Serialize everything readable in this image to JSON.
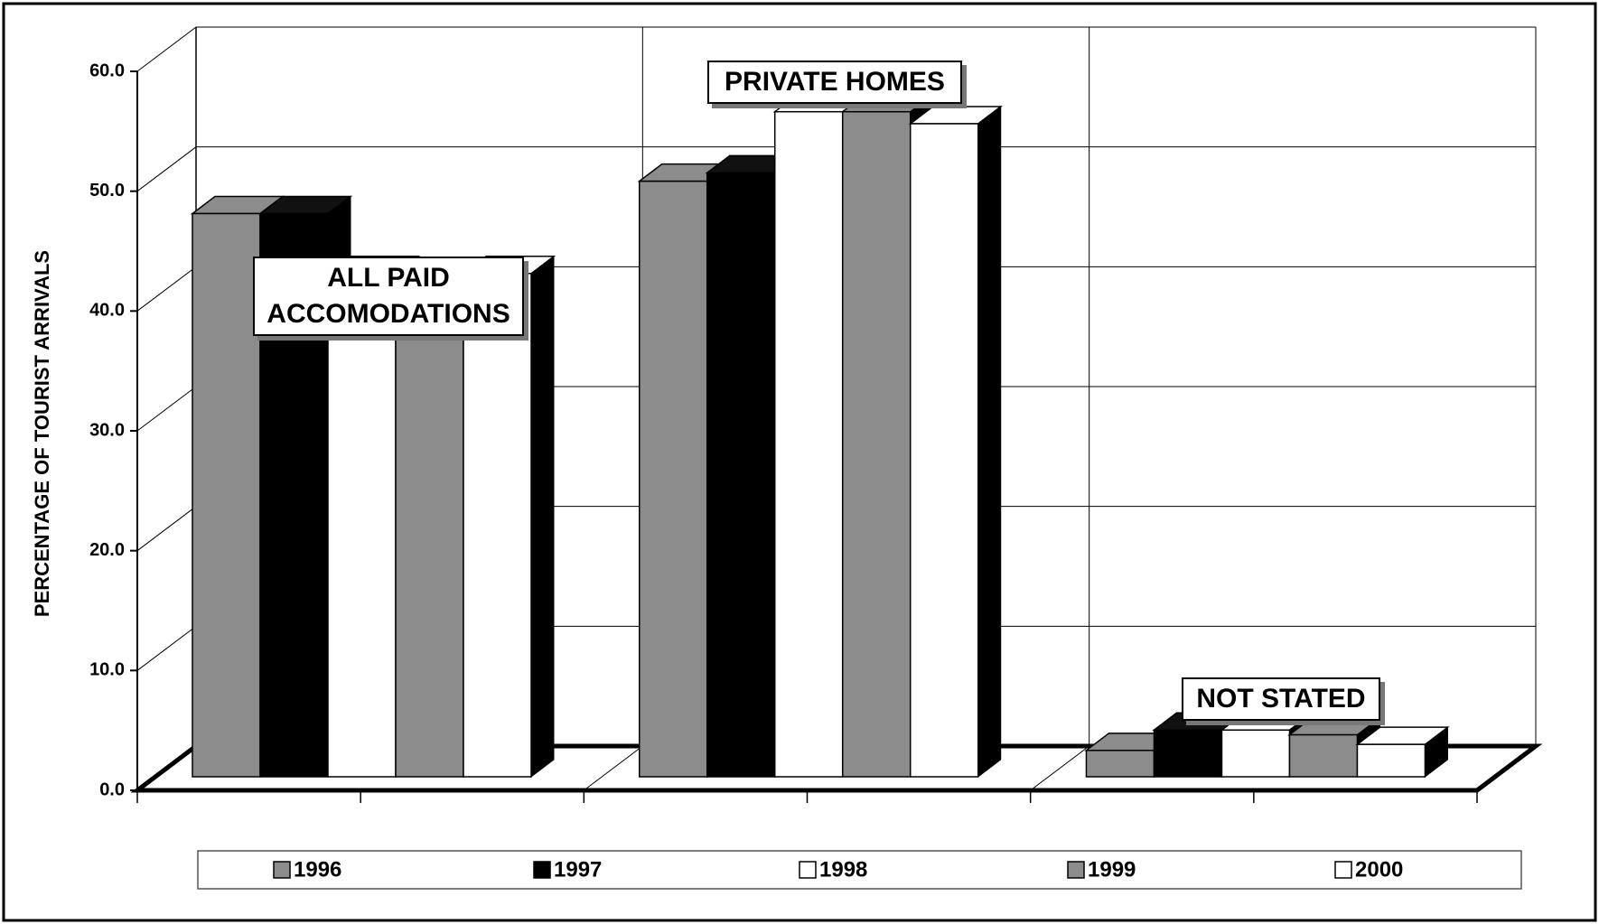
{
  "chart_data": {
    "type": "bar3d",
    "y_label": "PERCENTAGE OF TOURIST ARRIVALS",
    "categories": [
      "ALL PAID ACCOMODATIONS",
      "PRIVATE HOMES",
      "NOT STATED"
    ],
    "series": [
      {
        "name": "1996",
        "color": "#8c8c8c",
        "values": [
          47.0,
          49.7,
          2.2
        ]
      },
      {
        "name": "1997",
        "color": "#000000",
        "values": [
          47.0,
          50.4,
          3.9
        ]
      },
      {
        "name": "1998",
        "color": "#ffffff",
        "values": [
          42.0,
          55.5,
          3.9
        ]
      },
      {
        "name": "1999",
        "color": "#8c8c8c",
        "values": [
          41.0,
          55.5,
          3.5
        ]
      },
      {
        "name": "2000",
        "color": "#ffffff",
        "values": [
          42.0,
          54.5,
          2.7
        ]
      }
    ],
    "ylim": [
      0,
      60
    ],
    "yticks": [
      {
        "value": 0,
        "label": "0.0"
      },
      {
        "value": 10,
        "label": "10.0"
      },
      {
        "value": 20,
        "label": "20.0"
      },
      {
        "value": 30,
        "label": "30.0"
      },
      {
        "value": 40,
        "label": "40.0"
      },
      {
        "value": 50,
        "label": "50.0"
      },
      {
        "value": 60,
        "label": "60.0"
      }
    ],
    "grid": true,
    "legend": "bottom"
  }
}
